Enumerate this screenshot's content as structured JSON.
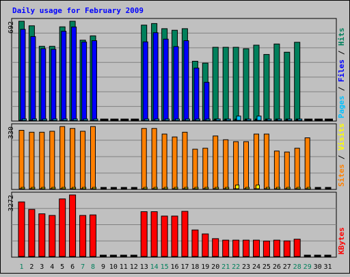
{
  "chart_data": [
    {
      "type": "bar",
      "title": "Daily usage for February 2009",
      "categories": [
        "1",
        "2",
        "3",
        "4",
        "5",
        "6",
        "7",
        "8",
        "9",
        "10",
        "11",
        "12",
        "13",
        "14",
        "15",
        "16",
        "17",
        "18",
        "19",
        "20",
        "21",
        "22",
        "23",
        "24",
        "25",
        "26",
        "27",
        "28",
        "29",
        "30",
        "31"
      ],
      "category_colors": {
        "weekday": "#000000",
        "weekend": "#00805c"
      },
      "weekend_days": [
        "1",
        "7",
        "8",
        "14",
        "15",
        "21",
        "22",
        "28",
        "29"
      ],
      "ymax_label": "692",
      "ylabel_parts": [
        {
          "text": "Pages",
          "color": "#00c0ff"
        },
        {
          "text": " / ",
          "color": "#000000"
        },
        {
          "text": "Files",
          "color": "#0000ff"
        },
        {
          "text": " / ",
          "color": "#000000"
        },
        {
          "text": "Hits",
          "color": "#00805c"
        }
      ],
      "ylim": [
        0,
        692
      ],
      "series": [
        {
          "name": "Hits",
          "color": "#00805c",
          "values": [
            692,
            660,
            517,
            517,
            653,
            692,
            560,
            590,
            0,
            0,
            0,
            0,
            665,
            676,
            640,
            629,
            640,
            413,
            400,
            510,
            510,
            510,
            500,
            525,
            460,
            533,
            476,
            545,
            0,
            0,
            0
          ]
        },
        {
          "name": "Files",
          "color": "#0000ff",
          "values": [
            635,
            585,
            500,
            496,
            622,
            652,
            547,
            556,
            0,
            0,
            0,
            0,
            548,
            612,
            567,
            515,
            556,
            365,
            266,
            0,
            0,
            0,
            0,
            0,
            0,
            0,
            0,
            0,
            0,
            0,
            0
          ]
        },
        {
          "name": "Pages",
          "color": "#00c0ff",
          "values": [
            10,
            10,
            8,
            10,
            10,
            10,
            8,
            8,
            0,
            0,
            0,
            0,
            6,
            6,
            6,
            6,
            6,
            4,
            6,
            10,
            6,
            30,
            6,
            30,
            6,
            6,
            6,
            4,
            0,
            0,
            0
          ]
        }
      ]
    },
    {
      "type": "bar",
      "ymax_label": "330",
      "ylabel_parts": [
        {
          "text": "Sites",
          "color": "#ff8000"
        },
        {
          "text": " / ",
          "color": "#000000"
        },
        {
          "text": "Visits",
          "color": "#ffff00"
        }
      ],
      "ylim": [
        0,
        330
      ],
      "series": [
        {
          "name": "Sites",
          "color": "#ff8000",
          "values": [
            310,
            300,
            300,
            305,
            330,
            320,
            305,
            330,
            0,
            0,
            0,
            0,
            320,
            320,
            290,
            275,
            300,
            210,
            215,
            280,
            260,
            250,
            250,
            290,
            290,
            200,
            195,
            215,
            270,
            0,
            0
          ]
        },
        {
          "name": "Visits",
          "color": "#ffff00",
          "values": [
            4,
            4,
            4,
            4,
            4,
            4,
            4,
            4,
            0,
            0,
            0,
            0,
            4,
            4,
            4,
            4,
            4,
            4,
            4,
            6,
            6,
            20,
            6,
            20,
            6,
            4,
            4,
            4,
            4,
            0,
            0
          ]
        }
      ]
    },
    {
      "type": "bar",
      "ymax_label": "3272",
      "ylabel_parts": [
        {
          "text": "KBytes",
          "color": "#ff0000"
        }
      ],
      "ylim": [
        0,
        3272
      ],
      "series": [
        {
          "name": "KBytes",
          "color": "#ff0000",
          "values": [
            2900,
            2500,
            2270,
            2180,
            3060,
            3272,
            2180,
            2210,
            0,
            0,
            0,
            0,
            2380,
            2380,
            2150,
            2150,
            2400,
            1410,
            1200,
            950,
            870,
            870,
            870,
            870,
            820,
            870,
            830,
            920,
            0,
            0,
            0
          ]
        }
      ]
    }
  ]
}
